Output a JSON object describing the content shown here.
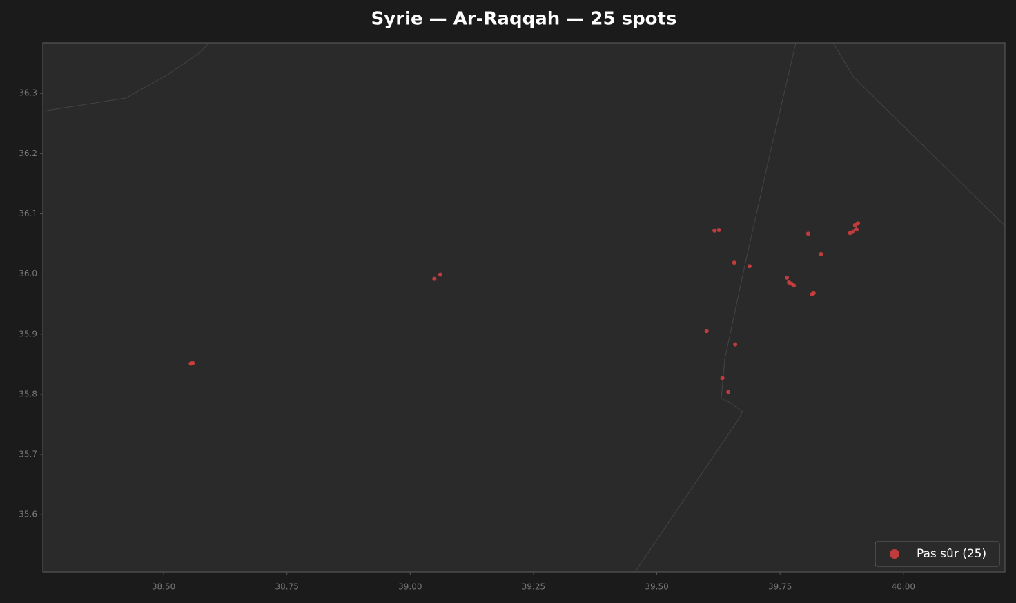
{
  "chart_data": {
    "type": "scatter",
    "title": "Syrie — Ar-Raqqah — 25 spots",
    "xlim": [
      38.255,
      40.206
    ],
    "ylim": [
      35.505,
      36.384
    ],
    "xticks": [
      {
        "value": 38.5,
        "label": "38.50"
      },
      38.75,
      {
        "value": 39,
        "label": "39.00"
      },
      39.25,
      {
        "value": 39.5,
        "label": "39.50"
      },
      39.75,
      {
        "value": 40,
        "label": "40.00"
      }
    ],
    "yticks": [
      {
        "value": 35.6,
        "label": "35.6"
      },
      35.7,
      35.8,
      35.9,
      {
        "value": 36,
        "label": "36.0"
      },
      36.1,
      36.2,
      36.3
    ],
    "legend": "lower right",
    "series": [
      {
        "name": "Pas sûr (25)",
        "color": "#d9403f",
        "x": [
          38.555,
          38.559,
          39.049,
          39.061,
          39.617,
          39.626,
          39.657,
          39.688,
          39.601,
          39.659,
          39.633,
          39.645,
          39.807,
          39.833,
          39.764,
          39.768,
          39.773,
          39.778,
          39.814,
          39.818,
          39.892,
          39.898,
          39.902,
          39.905,
          39.908
        ],
        "values": [
          35.851,
          35.852,
          35.992,
          35.999,
          36.072,
          36.073,
          36.019,
          36.013,
          35.905,
          35.883,
          35.827,
          35.804,
          36.067,
          36.033,
          35.994,
          35.986,
          35.984,
          35.981,
          35.966,
          35.968,
          36.068,
          36.07,
          36.081,
          36.074,
          36.084
        ]
      }
    ]
  }
}
